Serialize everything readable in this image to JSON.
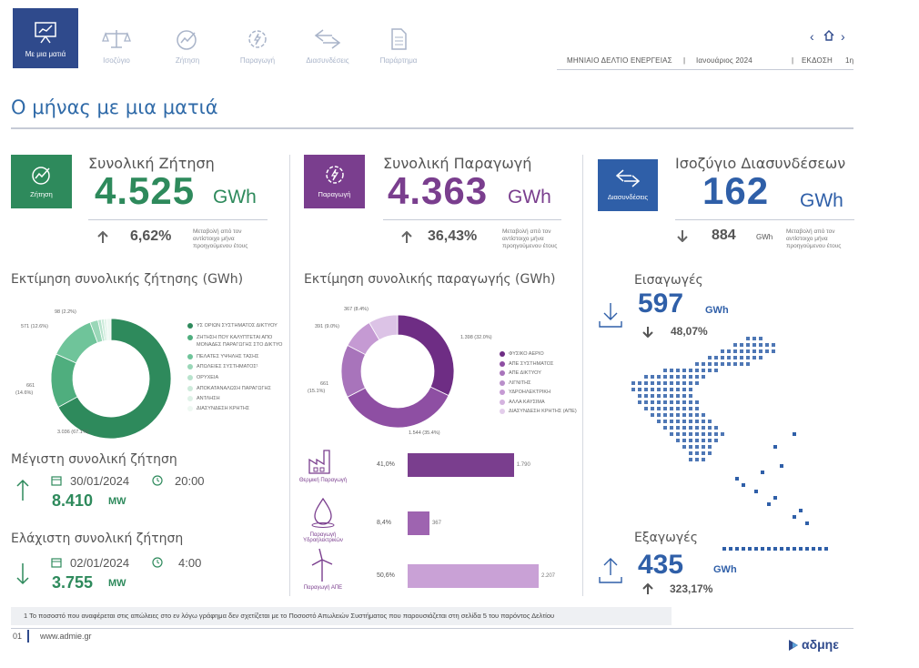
{
  "nav": {
    "items": [
      {
        "label": "Με μια ματιά",
        "icon": "presentation-chart-icon"
      },
      {
        "label": "Ισοζύγιο",
        "icon": "balance-scale-icon"
      },
      {
        "label": "Ζήτηση",
        "icon": "demand-gauge-icon"
      },
      {
        "label": "Παραγωγή",
        "icon": "gear-bolt-icon"
      },
      {
        "label": "Διασυνδέσεις",
        "icon": "exchange-arrows-icon"
      },
      {
        "label": "Παράρτημα",
        "icon": "document-icon"
      }
    ],
    "bulletin": "ΜΗΝΙΑΙΟ ΔΕΛΤΙΟ  ΕΝΕΡΓΕΙΑΣ",
    "month": "Ιανουάριος 2024",
    "edition_label": "ΕΚΔΟΣΗ",
    "edition": "1η"
  },
  "page_title": "Ο μήνας με μια ματιά",
  "kpis": {
    "demand": {
      "icon_label": "Ζήτηση",
      "label": "Συνολική Ζήτηση",
      "value": "4.525",
      "unit": "GWh",
      "change": "6,62%",
      "note": "Μεταβολή από τον αντίστοιχο μήνα προηγούμενου έτους",
      "color": "#2e8a5c"
    },
    "production": {
      "icon_label": "Παραγωγή",
      "label": "Συνολική Παραγωγή",
      "value": "4.363",
      "unit": "GWh",
      "change": "36,43%",
      "note": "Μεταβολή από τον αντίστοιχο μήνα προηγούμενου έτους",
      "color": "#7a3e8e"
    },
    "interconnections": {
      "icon_label": "Διασυνδέσεις",
      "label": "Ισοζύγιο Διασυνδέσεων",
      "value": "162",
      "unit": "GWh",
      "change": "884",
      "change_unit": "GWh",
      "note": "Μεταβολή από τον αντίστοιχο μήνα προηγούμενου έτους",
      "color": "#2f5fa8"
    }
  },
  "demand_chart": {
    "title": "Εκτίμηση συνολικής ζήτησης (GWh)",
    "labels": {
      "a": "98 (2.2%)",
      "b": "571 (12.6%)",
      "c": "661",
      "c2": "(14.6%)",
      "d": "3.036 (67.1%)"
    },
    "legend": [
      "ΥΣ ΟΡΙΩΝ ΣΥΣΤΗΜΑΤΟΣ ΔΙΚΤΥΟΥ",
      "ΖΗΤΗΣΗ ΠΟΥ ΚΑΛΥΠΤΕΤΑΙ ΑΠΟ",
      "ΜΟΝΑΔΕΣ ΠΑΡΑΓΩΓΗΣ ΣΤΟ ΔΙΚΤΥΟ",
      "ΠΕΛΑΤΕΣ ΥΨΗΛΗΣ ΤΑΣΗΣ",
      "ΑΠΩΛΕΙΕΣ ΣΥΣΤΗΜΑΤΟΣ¹",
      "ΟΡΥΧΕΙΑ",
      "ΑΠΟΚΑΤΑΝΑΛΩΣΗ ΠΑΡΑΓΩΓΗΣ",
      "ΑΝΤΛΗΣΗ",
      "ΔΙΑΣΥΝΔΕΣΗ ΚΡΗΤΗΣ"
    ]
  },
  "production_chart": {
    "title": "Εκτίμηση συνολικής παραγωγής (GWh)",
    "labels": {
      "a": "367 (8.4%)",
      "b": "391 (9.0%)",
      "c": "1.398 (32.0%)",
      "d": "661",
      "d2": "(15.1%)",
      "e": "1.544 (35.4%)"
    },
    "legend": [
      "ΦΥΣΙΚΟ ΑΕΡΙΟ",
      "ΑΠΕ ΣΥΣΤΗΜΑΤΟΣ",
      "ΑΠΕ ΔΙΚΤΥΟΥ",
      "ΛΙΓΝΙΤΗΣ",
      "ΥΔΡΟΗΛΕΚΤΡΙΚΗ",
      "ΑΛΛΑ ΚΑΥΣΙΜΑ",
      "ΔΙΑΣΥΝΔΕΣΗ ΚΡΗΤΗΣ (ΑΠΕ)"
    ]
  },
  "bars": [
    {
      "label": "Θερμική Παραγωγή",
      "pct": "41,0%",
      "value": "1.790",
      "v": 1790,
      "color": "#7a3e8e",
      "icon": "factory-icon"
    },
    {
      "label": "Παραγωγή Υδροηλεκτρικών",
      "pct": "8,4%",
      "value": "367",
      "v": 367,
      "color": "#9e64b0",
      "icon": "water-drop-icon"
    },
    {
      "label": "Παραγωγή ΑΠΕ",
      "pct": "50,6%",
      "value": "2.207",
      "v": 2207,
      "color": "#c9a1d6",
      "icon": "wind-turbine-icon"
    }
  ],
  "max_demand": {
    "title": "Μέγιστη συνολική ζήτηση",
    "date": "30/01/2024",
    "time": "20:00",
    "value": "8.410",
    "unit": "MW"
  },
  "min_demand": {
    "title": "Ελάχιστη συνολική ζήτηση",
    "date": "02/01/2024",
    "time": "4:00",
    "value": "3.755",
    "unit": "MW"
  },
  "imports": {
    "title": "Εισαγωγές",
    "value": "597",
    "unit": "GWh",
    "change": "48,07%"
  },
  "exports": {
    "title": "Εξαγωγές",
    "value": "435",
    "unit": "GWh",
    "change": "323,17%"
  },
  "footnote": "1  Το ποσοστό που αναφέρεται στις απώλειες στο εν λόγω γράφημα δεν  σχετίζεται με το Ποσοστό Απωλειών Συστήματος που παρουσιάζεται στη σελίδα 5 του παρόντος Δελτίου",
  "footer": {
    "page": "01",
    "url": "www.admie.gr",
    "brand": "αδμηε"
  },
  "chart_data": [
    {
      "type": "pie",
      "title": "Εκτίμηση συνολικής ζήτησης (GWh)",
      "categories": [
        "ΥΣ ΟΡΙΩΝ ΣΥΣΤΗΜΑΤΟΣ ΔΙΚΤΥΟΥ",
        "ΖΗΤΗΣΗ ΠΟΥ ΚΑΛΥΠΤΕΤΑΙ ΑΠΟ ΜΟΝΑΔΕΣ ΠΑΡΑΓΩΓΗΣ ΣΤΟ ΔΙΚΤΥΟ",
        "ΠΕΛΑΤΕΣ ΥΨΗΛΗΣ ΤΑΣΗΣ",
        "ΑΠΩΛΕΙΕΣ ΣΥΣΤΗΜΑΤΟΣ",
        "ΟΡΥΧΕΙΑ",
        "ΑΠΟΚΑΤΑΝΑΛΩΣΗ ΠΑΡΑΓΩΓΗΣ",
        "ΑΝΤΛΗΣΗ",
        "ΔΙΑΣΥΝΔΕΣΗ ΚΡΗΤΗΣ"
      ],
      "values": [
        3036,
        661,
        571,
        98,
        40,
        35,
        30,
        54
      ],
      "colors": [
        "#2e8a5c",
        "#4fae7e",
        "#6fc49a",
        "#9ad7b8",
        "#b8e3cd",
        "#cdebdb",
        "#def2e7",
        "#eef8f2"
      ]
    },
    {
      "type": "pie",
      "title": "Εκτίμηση συνολικής παραγωγής (GWh)",
      "categories": [
        "ΦΥΣΙΚΟ ΑΕΡΙΟ",
        "ΑΠΕ ΣΥΣΤΗΜΑΤΟΣ",
        "ΑΠΕ ΔΙΚΤΥΟΥ",
        "ΛΙΓΝΙΤΗΣ",
        "ΥΔΡΟΗΛΕΚΤΡΙΚΗ"
      ],
      "values": [
        1398,
        1544,
        661,
        391,
        367
      ],
      "colors": [
        "#6e2d84",
        "#8e4fa3",
        "#a874bb",
        "#c59ad3",
        "#dcc3e6"
      ]
    },
    {
      "type": "bar",
      "categories": [
        "Θερμική Παραγωγή",
        "Παραγωγή Υδροηλεκτρικών",
        "Παραγωγή ΑΠΕ"
      ],
      "values": [
        1790,
        367,
        2207
      ]
    }
  ]
}
